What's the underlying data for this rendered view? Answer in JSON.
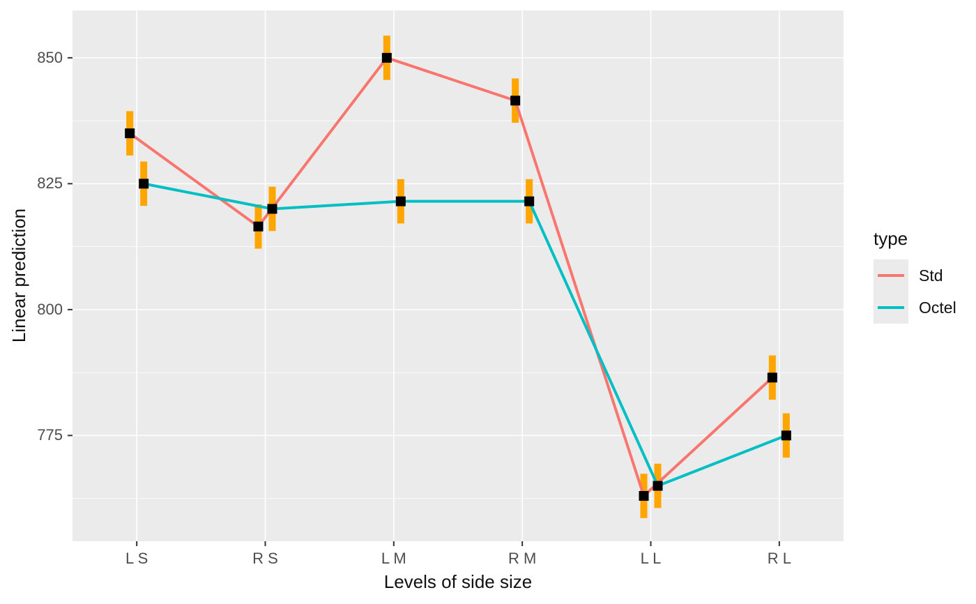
{
  "chart_data": {
    "type": "line",
    "title": "",
    "xlabel": "Levels of side size",
    "ylabel": "Linear prediction",
    "categories": [
      "L S",
      "R S",
      "L M",
      "R M",
      "L L",
      "R L"
    ],
    "y_ticks": [
      775,
      800,
      825,
      850
    ],
    "ylim": [
      754,
      859.4
    ],
    "y_minor_step": 12.5,
    "grid": true,
    "legend": {
      "title": "type",
      "position": "right"
    },
    "point_shape": "square",
    "point_color": "#000000",
    "error_bar_color": "#FFA500",
    "colors": {
      "panel_bg": "#EBEBEB",
      "grid": "#FFFFFF",
      "tick_marks": "#333333",
      "tick_labels": "#4D4D4D",
      "axis_titles": "#111111"
    },
    "series": [
      {
        "name": "Std",
        "color": "#F8766D",
        "points": [
          {
            "category": "L S",
            "y": 835.0,
            "lo": 830.6,
            "hi": 839.4
          },
          {
            "category": "R S",
            "y": 816.5,
            "lo": 812.1,
            "hi": 820.9
          },
          {
            "category": "L M",
            "y": 850.0,
            "lo": 845.6,
            "hi": 854.4
          },
          {
            "category": "R M",
            "y": 841.5,
            "lo": 837.1,
            "hi": 845.9
          },
          {
            "category": "L L",
            "y": 763.0,
            "lo": 758.6,
            "hi": 767.4
          },
          {
            "category": "R L",
            "y": 786.5,
            "lo": 782.1,
            "hi": 790.9
          }
        ]
      },
      {
        "name": "Octel",
        "color": "#00BFC4",
        "points": [
          {
            "category": "L S",
            "y": 825.0,
            "lo": 820.6,
            "hi": 829.4
          },
          {
            "category": "R S",
            "y": 820.0,
            "lo": 815.6,
            "hi": 824.4
          },
          {
            "category": "L M",
            "y": 821.5,
            "lo": 817.1,
            "hi": 825.9
          },
          {
            "category": "R M",
            "y": 821.5,
            "lo": 817.1,
            "hi": 825.9
          },
          {
            "category": "L L",
            "y": 765.0,
            "lo": 760.6,
            "hi": 769.4
          },
          {
            "category": "R L",
            "y": 775.0,
            "lo": 770.6,
            "hi": 779.4
          }
        ]
      }
    ]
  }
}
